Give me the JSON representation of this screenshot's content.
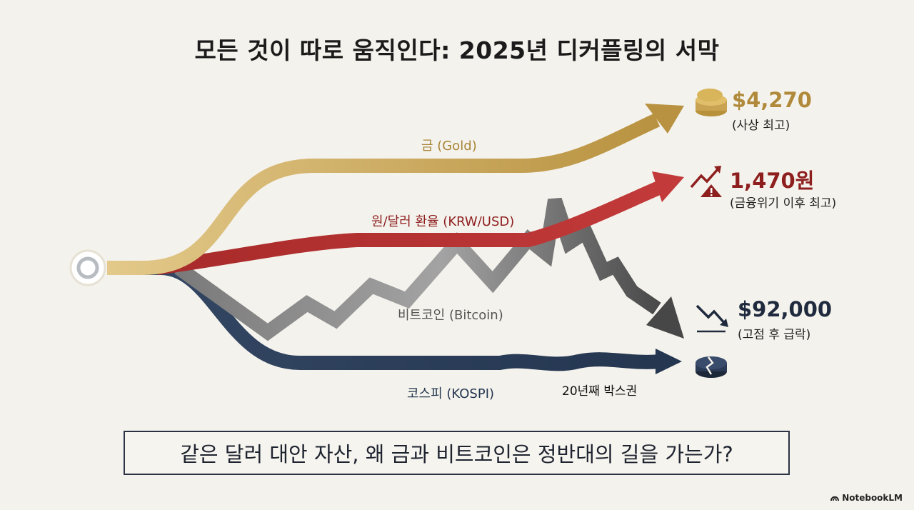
{
  "title": "모든 것이 따로 움직인다: 2025년 디커플링의 서막",
  "series": {
    "gold": {
      "label": "금 (Gold)",
      "value": "$4,270",
      "note": "(사상 최고)",
      "color": "#c9a352"
    },
    "krw": {
      "label": "원/달러 환율 (KRW/USD)",
      "value": "1,470원",
      "note": "(금융위기 이후 최고)",
      "color": "#b23434"
    },
    "btc": {
      "label": "비트코인 (Bitcoin)",
      "value": "$92,000",
      "note": "(고점 후 급락)",
      "color": "#8c8c8c"
    },
    "kospi": {
      "label": "코스피 (KOSPI)",
      "note": "20년째 박스권",
      "color": "#2b3a55"
    }
  },
  "icons": {
    "gold": "gold-coins-icon",
    "krw": "warning-trend-up-icon",
    "btc": "trend-down-icon",
    "kospi": "broken-coin-icon"
  },
  "question": "같은 달러 대안 자산, 왜 금과 비트코인은 정반대의 길을 가는가?",
  "brand": "NotebookLM"
}
